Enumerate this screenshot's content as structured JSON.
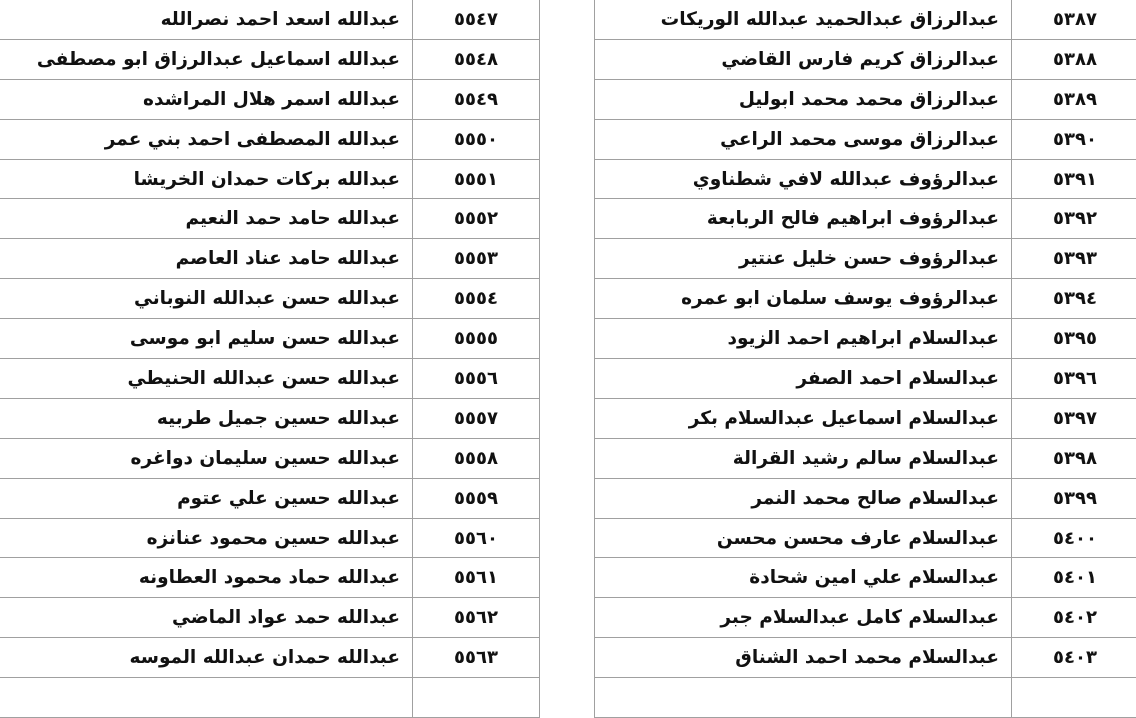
{
  "left_table": {
    "rows": [
      {
        "number": "٥٥٤٧",
        "name": "عبدالله اسعد احمد نصرالله"
      },
      {
        "number": "٥٥٤٨",
        "name": "عبدالله اسماعيل عبدالرزاق ابو مصطفى"
      },
      {
        "number": "٥٥٤٩",
        "name": "عبدالله اسمر هلال المراشده"
      },
      {
        "number": "٥٥٥٠",
        "name": "عبدالله المصطفى احمد بني عمر"
      },
      {
        "number": "٥٥٥١",
        "name": "عبدالله بركات حمدان الخريشا"
      },
      {
        "number": "٥٥٥٢",
        "name": "عبدالله حامد حمد النعيم"
      },
      {
        "number": "٥٥٥٣",
        "name": "عبدالله حامد عناد العاصم"
      },
      {
        "number": "٥٥٥٤",
        "name": "عبدالله حسن عبدالله النوباني"
      },
      {
        "number": "٥٥٥٥",
        "name": "عبدالله حسن سليم ابو موسى"
      },
      {
        "number": "٥٥٥٦",
        "name": "عبدالله حسن عبدالله الحنيطي"
      },
      {
        "number": "٥٥٥٧",
        "name": "عبدالله حسين جميل طربيه"
      },
      {
        "number": "٥٥٥٨",
        "name": "عبدالله حسين سليمان دواغره"
      },
      {
        "number": "٥٥٥٩",
        "name": "عبدالله حسين علي عتوم"
      },
      {
        "number": "٥٥٦٠",
        "name": "عبدالله حسين محمود عنانزه"
      },
      {
        "number": "٥٥٦١",
        "name": "عبدالله حماد محمود العطاونه"
      },
      {
        "number": "٥٥٦٢",
        "name": "عبدالله حمد عواد الماضي"
      },
      {
        "number": "٥٥٦٣",
        "name": "عبدالله حمدان عبدالله الموسه"
      }
    ]
  },
  "right_table": {
    "rows": [
      {
        "number": "٥٣٨٧",
        "name": "عبدالرزاق عبدالحميد عبدالله الوريكات"
      },
      {
        "number": "٥٣٨٨",
        "name": "عبدالرزاق كريم فارس القاضي"
      },
      {
        "number": "٥٣٨٩",
        "name": "عبدالرزاق محمد محمد ابوليل"
      },
      {
        "number": "٥٣٩٠",
        "name": "عبدالرزاق موسى محمد الراعي"
      },
      {
        "number": "٥٣٩١",
        "name": "عبدالرؤوف عبدالله لافي شطناوي"
      },
      {
        "number": "٥٣٩٢",
        "name": "عبدالرؤوف ابراهيم فالح الربابعة"
      },
      {
        "number": "٥٣٩٣",
        "name": "عبدالرؤوف حسن خليل عنتير"
      },
      {
        "number": "٥٣٩٤",
        "name": "عبدالرؤوف يوسف سلمان ابو عمره"
      },
      {
        "number": "٥٣٩٥",
        "name": "عبدالسلام ابراهيم احمد الزيود"
      },
      {
        "number": "٥٣٩٦",
        "name": "عبدالسلام احمد الصفر"
      },
      {
        "number": "٥٣٩٧",
        "name": "عبدالسلام اسماعيل عبدالسلام بكر"
      },
      {
        "number": "٥٣٩٨",
        "name": "عبدالسلام سالم رشيد القرالة"
      },
      {
        "number": "٥٣٩٩",
        "name": "عبدالسلام صالح محمد النمر"
      },
      {
        "number": "٥٤٠٠",
        "name": "عبدالسلام عارف محسن محسن"
      },
      {
        "number": "٥٤٠١",
        "name": "عبدالسلام علي امين شحادة"
      },
      {
        "number": "٥٤٠٢",
        "name": "عبدالسلام كامل عبدالسلام جبر"
      },
      {
        "number": "٥٤٠٣",
        "name": "عبدالسلام محمد احمد الشناق"
      }
    ]
  }
}
